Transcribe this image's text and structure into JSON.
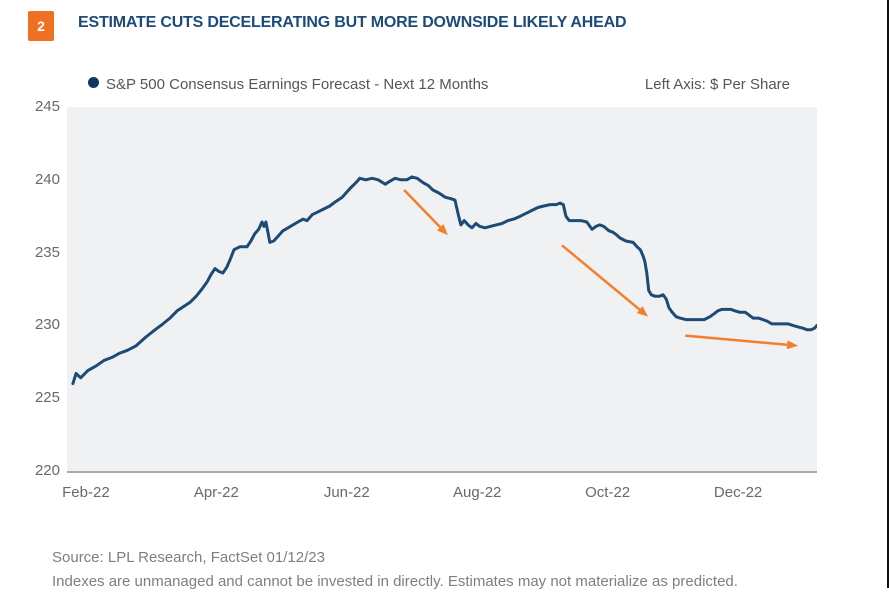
{
  "header": {
    "figure_number": "2",
    "title": "ESTIMATE CUTS DECELERATING BUT MORE DOWNSIDE LIKELY AHEAD"
  },
  "footer": {
    "source": "Source: LPL Research, FactSet  01/12/23",
    "disclaimer": "Indexes are unmanaged and cannot be invested in directly. Estimates may not materialize as predicted."
  },
  "colors": {
    "badge_orange": "#ef6f23",
    "arrow_orange": "#f57e2c",
    "line_navy": "#1c4b75",
    "legend_dot_navy": "#12365e",
    "title_navy": "#1c4b7a",
    "plot_background": "#f0f1f2",
    "axis_text_gray": "#68696b",
    "footer_gray": "#7d7f82"
  },
  "chart_data": {
    "type": "line",
    "title": "S&P 500 Consensus Earnings Forecast - Next 12 Months",
    "left_axis_label": "Left Axis: $ Per Share",
    "xlabel": "",
    "ylabel": "$ Per Share",
    "x_unit": "months since Feb-2022",
    "x_range": [
      -0.29,
      11.21
    ],
    "ylim": [
      220,
      245
    ],
    "y_ticks": [
      245,
      240,
      235,
      230,
      225,
      220
    ],
    "x_ticks": [
      {
        "t": 0,
        "label": "Feb-22"
      },
      {
        "t": 2,
        "label": "Apr-22"
      },
      {
        "t": 4,
        "label": "Jun-22"
      },
      {
        "t": 6,
        "label": "Aug-22"
      },
      {
        "t": 8,
        "label": "Oct-22"
      },
      {
        "t": 10,
        "label": "Dec-22"
      }
    ],
    "grid": false,
    "legend_position": "top-left",
    "series": [
      {
        "name": "S&P 500 Consensus Earnings Forecast - Next 12 Months",
        "color": "#1c4b75",
        "points": [
          [
            -0.2,
            226.0
          ],
          [
            -0.15,
            226.7
          ],
          [
            -0.08,
            226.4
          ],
          [
            0.03,
            226.9
          ],
          [
            0.15,
            227.2
          ],
          [
            0.28,
            227.6
          ],
          [
            0.4,
            227.8
          ],
          [
            0.52,
            228.1
          ],
          [
            0.64,
            228.3
          ],
          [
            0.77,
            228.6
          ],
          [
            0.92,
            229.2
          ],
          [
            1.06,
            229.7
          ],
          [
            1.18,
            230.1
          ],
          [
            1.29,
            230.5
          ],
          [
            1.4,
            231.0
          ],
          [
            1.5,
            231.3
          ],
          [
            1.6,
            231.6
          ],
          [
            1.69,
            232.0
          ],
          [
            1.78,
            232.5
          ],
          [
            1.86,
            233.0
          ],
          [
            1.92,
            233.5
          ],
          [
            1.98,
            233.9
          ],
          [
            2.04,
            233.7
          ],
          [
            2.1,
            233.6
          ],
          [
            2.16,
            234.0
          ],
          [
            2.21,
            234.5
          ],
          [
            2.27,
            235.2
          ],
          [
            2.36,
            235.4
          ],
          [
            2.47,
            235.4
          ],
          [
            2.53,
            235.8
          ],
          [
            2.59,
            236.3
          ],
          [
            2.65,
            236.6
          ],
          [
            2.7,
            237.1
          ],
          [
            2.73,
            236.8
          ],
          [
            2.76,
            237.1
          ],
          [
            2.79,
            236.4
          ],
          [
            2.82,
            235.7
          ],
          [
            2.88,
            235.8
          ],
          [
            2.94,
            236.1
          ],
          [
            3.02,
            236.5
          ],
          [
            3.1,
            236.7
          ],
          [
            3.21,
            237.0
          ],
          [
            3.33,
            237.3
          ],
          [
            3.39,
            237.2
          ],
          [
            3.47,
            237.6
          ],
          [
            3.56,
            237.8
          ],
          [
            3.65,
            238.0
          ],
          [
            3.74,
            238.2
          ],
          [
            3.83,
            238.5
          ],
          [
            3.93,
            238.8
          ],
          [
            4.05,
            239.4
          ],
          [
            4.14,
            239.8
          ],
          [
            4.2,
            240.1
          ],
          [
            4.29,
            240.0
          ],
          [
            4.39,
            240.1
          ],
          [
            4.48,
            240.0
          ],
          [
            4.59,
            239.7
          ],
          [
            4.66,
            239.9
          ],
          [
            4.74,
            240.1
          ],
          [
            4.83,
            240.0
          ],
          [
            4.92,
            240.0
          ],
          [
            5.0,
            240.2
          ],
          [
            5.08,
            240.1
          ],
          [
            5.17,
            239.8
          ],
          [
            5.25,
            239.6
          ],
          [
            5.32,
            239.3
          ],
          [
            5.41,
            239.1
          ],
          [
            5.51,
            238.8
          ],
          [
            5.6,
            238.7
          ],
          [
            5.66,
            238.6
          ],
          [
            5.71,
            237.6
          ],
          [
            5.75,
            236.9
          ],
          [
            5.8,
            237.2
          ],
          [
            5.86,
            236.9
          ],
          [
            5.92,
            236.7
          ],
          [
            5.98,
            237.0
          ],
          [
            6.04,
            236.8
          ],
          [
            6.12,
            236.7
          ],
          [
            6.2,
            236.8
          ],
          [
            6.29,
            236.9
          ],
          [
            6.38,
            237.0
          ],
          [
            6.47,
            237.2
          ],
          [
            6.56,
            237.3
          ],
          [
            6.66,
            237.5
          ],
          [
            6.75,
            237.7
          ],
          [
            6.84,
            237.9
          ],
          [
            6.93,
            238.1
          ],
          [
            7.02,
            238.2
          ],
          [
            7.12,
            238.3
          ],
          [
            7.21,
            238.3
          ],
          [
            7.27,
            238.4
          ],
          [
            7.32,
            238.3
          ],
          [
            7.36,
            237.5
          ],
          [
            7.41,
            237.2
          ],
          [
            7.5,
            237.2
          ],
          [
            7.59,
            237.2
          ],
          [
            7.68,
            237.1
          ],
          [
            7.76,
            236.6
          ],
          [
            7.82,
            236.8
          ],
          [
            7.88,
            236.9
          ],
          [
            7.94,
            236.8
          ],
          [
            8.02,
            236.5
          ],
          [
            8.08,
            236.4
          ],
          [
            8.14,
            236.2
          ],
          [
            8.19,
            236.0
          ],
          [
            8.28,
            235.8
          ],
          [
            8.39,
            235.7
          ],
          [
            8.45,
            235.4
          ],
          [
            8.5,
            235.2
          ],
          [
            8.54,
            234.8
          ],
          [
            8.57,
            234.4
          ],
          [
            8.6,
            233.6
          ],
          [
            8.63,
            232.4
          ],
          [
            8.67,
            232.1
          ],
          [
            8.73,
            232.0
          ],
          [
            8.79,
            232.0
          ],
          [
            8.85,
            232.1
          ],
          [
            8.9,
            231.8
          ],
          [
            8.94,
            231.2
          ],
          [
            8.99,
            230.9
          ],
          [
            9.05,
            230.6
          ],
          [
            9.11,
            230.5
          ],
          [
            9.2,
            230.4
          ],
          [
            9.29,
            230.4
          ],
          [
            9.39,
            230.4
          ],
          [
            9.48,
            230.4
          ],
          [
            9.57,
            230.6
          ],
          [
            9.63,
            230.8
          ],
          [
            9.69,
            231.0
          ],
          [
            9.75,
            231.1
          ],
          [
            9.83,
            231.1
          ],
          [
            9.89,
            231.1
          ],
          [
            9.95,
            231.0
          ],
          [
            10.03,
            230.9
          ],
          [
            10.11,
            230.9
          ],
          [
            10.17,
            230.7
          ],
          [
            10.23,
            230.5
          ],
          [
            10.31,
            230.5
          ],
          [
            10.38,
            230.4
          ],
          [
            10.44,
            230.3
          ],
          [
            10.52,
            230.1
          ],
          [
            10.6,
            230.1
          ],
          [
            10.69,
            230.1
          ],
          [
            10.77,
            230.1
          ],
          [
            10.84,
            230.0
          ],
          [
            10.92,
            229.9
          ],
          [
            11.0,
            229.8
          ],
          [
            11.06,
            229.7
          ],
          [
            11.12,
            229.7
          ],
          [
            11.17,
            229.8
          ],
          [
            11.21,
            230.0
          ]
        ]
      }
    ],
    "annotations": {
      "arrows": [
        {
          "name": "first-decline-arrow",
          "from": [
            4.88,
            239.3
          ],
          "to": [
            5.55,
            236.2
          ]
        },
        {
          "name": "second-decline-arrow",
          "from": [
            7.3,
            235.5
          ],
          "to": [
            8.62,
            230.6
          ]
        },
        {
          "name": "third-decline-arrow",
          "from": [
            9.19,
            229.3
          ],
          "to": [
            10.92,
            228.6
          ]
        }
      ],
      "arrow_color": "#f57e2c"
    }
  }
}
